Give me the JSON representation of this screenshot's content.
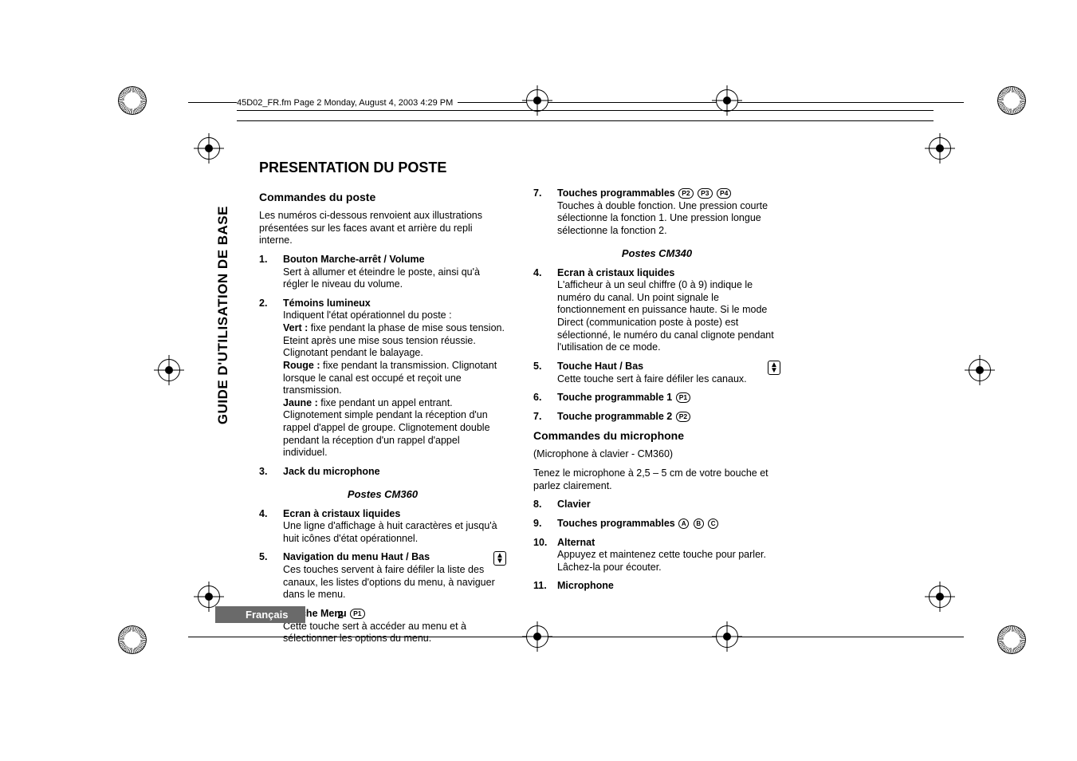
{
  "header_crop": "45D02_FR.fm  Page 2  Monday, August 4, 2003  4:29 PM",
  "side_tab": "GUIDE D'UTILISATION DE BASE",
  "title": "PRESENTATION DU POSTE",
  "section_commands_radio": "Commandes du poste",
  "intro": "Les numéros ci-dessous renvoient aux illustrations présentées sur les faces avant et arrière du repli interne.",
  "left_items_a": [
    {
      "n": "1.",
      "title": "Bouton Marche-arrêt / Volume",
      "desc": "Sert à allumer et éteindre le poste, ainsi qu'à régler le niveau du volume."
    },
    {
      "n": "2.",
      "title": "Témoins lumineux",
      "descs": [
        "Indiquent l'état opérationnel du poste :",
        "<b>Vert :</b> fixe pendant la phase de mise sous tension. Eteint après une mise sous tension réussie. Clignotant pendant le balayage.",
        "<b>Rouge :</b> fixe pendant la transmission. Clignotant lorsque le canal est occupé et reçoit une transmission.",
        "<b>Jaune :</b> fixe pendant un appel entrant. Clignotement simple pendant la réception d'un rappel d'appel de groupe. Clignotement double pendant la réception d'un rappel d'appel individuel."
      ]
    },
    {
      "n": "3.",
      "title": "Jack du microphone"
    }
  ],
  "model_360": "Postes CM360",
  "left_items_b": [
    {
      "n": "4.",
      "title": "Ecran à cristaux liquides",
      "desc": "Une ligne d'affichage à huit caractères et jusqu'à huit icônes d'état opérationnel."
    },
    {
      "n": "5.",
      "title": "Navigation du menu Haut / Bas",
      "desc": "Ces touches servent à faire défiler la liste des canaux, les listes d'options du menu, à naviguer dans le menu.",
      "updown": true
    },
    {
      "n": "6.",
      "title": "Touche Menu",
      "pills": [
        "P1"
      ],
      "desc": "Cette touche sert à accéder au menu et à sélectionner les options du menu."
    }
  ],
  "right_items_a": [
    {
      "n": "7.",
      "title": "Touches programmables",
      "pills": [
        "P2",
        "P3",
        "P4"
      ],
      "desc": "Touches à double fonction. Une pression courte sélectionne la fonction 1. Une pression longue sélectionne la fonction 2."
    }
  ],
  "model_340": "Postes CM340",
  "right_items_b": [
    {
      "n": "4.",
      "title": "Ecran à cristaux liquides",
      "desc": "L'afficheur à un seul chiffre (0 à 9) indique le numéro du canal. Un point signale le fonctionnement en puissance haute. Si le mode Direct (communication poste à poste) est sélectionné, le numéro du canal clignote pendant l'utilisation de ce mode."
    },
    {
      "n": "5.",
      "title": "Touche Haut / Bas",
      "desc": "Cette touche sert à faire défiler les canaux.",
      "updown": true
    },
    {
      "n": "6.",
      "title": "Touche programmable 1",
      "pills": [
        "P1"
      ]
    },
    {
      "n": "7.",
      "title": "Touche programmable 2",
      "pills": [
        "P2"
      ]
    }
  ],
  "section_mic": "Commandes du microphone",
  "mic_intro1": "(Microphone à clavier - CM360)",
  "mic_intro2": "Tenez le microphone à 2,5 – 5 cm de votre bouche et parlez clairement.",
  "mic_items": [
    {
      "n": "8.",
      "title": "Clavier"
    },
    {
      "n": "9.",
      "title": "Touches programmables",
      "circs": [
        "A",
        "B",
        "C"
      ]
    },
    {
      "n": "10.",
      "title": "Alternat",
      "desc": "Appuyez et maintenez cette touche pour parler. Lâchez-la pour écouter."
    },
    {
      "n": "11.",
      "title": "Microphone"
    }
  ],
  "footer_lang": "Français",
  "footer_page": "2"
}
